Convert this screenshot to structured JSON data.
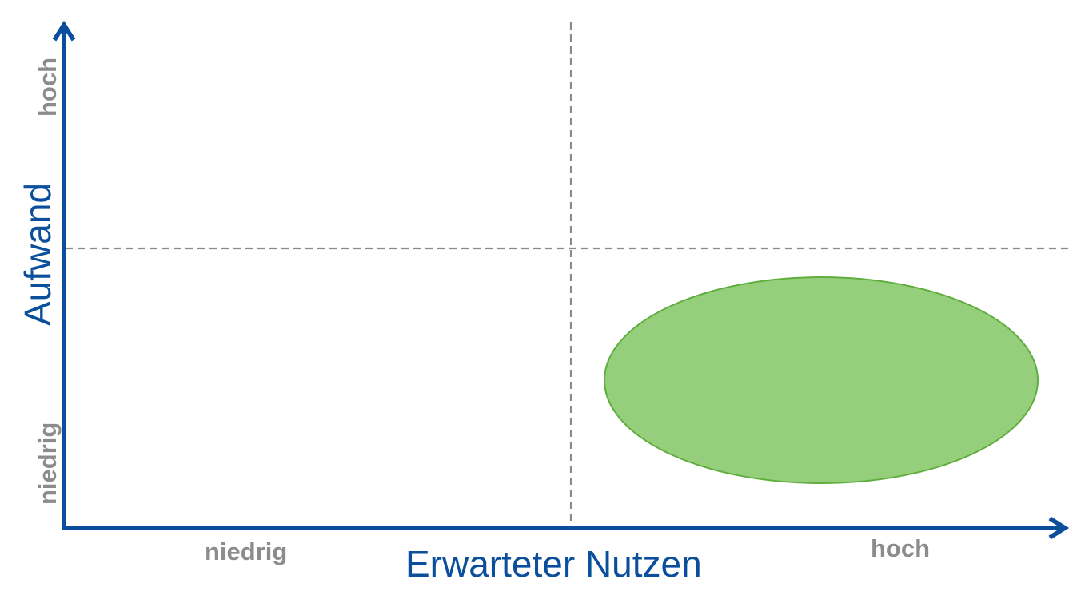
{
  "x_axis": {
    "title": "Erwarteter Nutzen",
    "low_label": "niedrig",
    "high_label": "hoch"
  },
  "y_axis": {
    "title": "Aufwand",
    "low_label": "niedrig",
    "high_label": "hoch"
  },
  "colors": {
    "axis": "#0b4f9c",
    "divider": "#8a8a8a",
    "level_label": "#8c8c8c",
    "region_fill": "#95cf7c",
    "region_stroke": "#5fae3e"
  },
  "highlight_region": {
    "quadrant": "high-benefit / low-effort"
  }
}
